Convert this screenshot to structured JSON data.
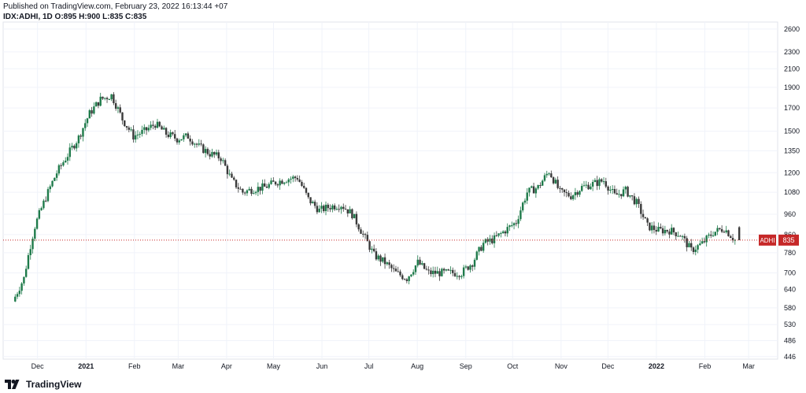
{
  "header": {
    "published": "Published on TradingView.com, February 23, 2022 16:13:44 +07",
    "symbol_info": "IDX:ADHI, 1D O:895 H:900 L:835 C:835"
  },
  "footer": {
    "brand": "TradingView",
    "logo_icon": "tradingview-logo-icon"
  },
  "colors": {
    "up": "#26a69a",
    "down": "#ef5350",
    "up_body": "#1e7a4a",
    "down_body": "#3a3a3a",
    "grid": "#f0f3fa",
    "price_line": "#c62828",
    "axis_text": "#131722"
  },
  "chart_data": {
    "type": "candlestick",
    "symbol": "IDX:ADHI",
    "interval": "1D",
    "last": {
      "open": 895,
      "high": 900,
      "low": 835,
      "close": 835
    },
    "price_label": {
      "name": "ADHI",
      "value": "835"
    },
    "y_scale": "log",
    "ylim": [
      440,
      2700
    ],
    "y_ticks": [
      2600,
      2300,
      2100,
      1900,
      1700,
      1500,
      1350,
      1200,
      1080,
      960,
      860,
      780,
      700,
      640,
      580,
      530,
      486,
      446
    ],
    "x_ticks": [
      "Dec",
      "2021",
      "Feb",
      "Mar",
      "Apr",
      "May",
      "Jun",
      "Jul",
      "Aug",
      "Sep",
      "Oct",
      "Nov",
      "Dec",
      "2022",
      "Feb",
      "Mar"
    ],
    "x_ticks_bold": [
      "2021",
      "2022"
    ],
    "grid": true,
    "series": [
      {
        "date": "2020-11-16",
        "close": 600
      },
      {
        "date": "2020-11-23",
        "close": 680
      },
      {
        "date": "2020-11-30",
        "close": 900
      },
      {
        "date": "2020-12-07",
        "close": 1050
      },
      {
        "date": "2020-12-14",
        "close": 1200
      },
      {
        "date": "2020-12-21",
        "close": 1320
      },
      {
        "date": "2020-12-28",
        "close": 1450
      },
      {
        "date": "2021-01-04",
        "close": 1650
      },
      {
        "date": "2021-01-11",
        "close": 1780
      },
      {
        "date": "2021-01-18",
        "close": 1820
      },
      {
        "date": "2021-01-25",
        "close": 1600
      },
      {
        "date": "2021-02-01",
        "close": 1460
      },
      {
        "date": "2021-02-08",
        "close": 1500
      },
      {
        "date": "2021-02-15",
        "close": 1560
      },
      {
        "date": "2021-02-22",
        "close": 1480
      },
      {
        "date": "2021-03-01",
        "close": 1440
      },
      {
        "date": "2021-03-08",
        "close": 1460
      },
      {
        "date": "2021-03-15",
        "close": 1380
      },
      {
        "date": "2021-03-22",
        "close": 1330
      },
      {
        "date": "2021-03-29",
        "close": 1300
      },
      {
        "date": "2021-04-05",
        "close": 1150
      },
      {
        "date": "2021-04-12",
        "close": 1080
      },
      {
        "date": "2021-04-19",
        "close": 1100
      },
      {
        "date": "2021-04-26",
        "close": 1110
      },
      {
        "date": "2021-05-03",
        "close": 1140
      },
      {
        "date": "2021-05-10",
        "close": 1160
      },
      {
        "date": "2021-05-17",
        "close": 1170
      },
      {
        "date": "2021-05-24",
        "close": 1040
      },
      {
        "date": "2021-05-31",
        "close": 980
      },
      {
        "date": "2021-06-07",
        "close": 1000
      },
      {
        "date": "2021-06-14",
        "close": 1010
      },
      {
        "date": "2021-06-21",
        "close": 960
      },
      {
        "date": "2021-06-28",
        "close": 860
      },
      {
        "date": "2021-07-05",
        "close": 770
      },
      {
        "date": "2021-07-12",
        "close": 740
      },
      {
        "date": "2021-07-19",
        "close": 700
      },
      {
        "date": "2021-07-26",
        "close": 680
      },
      {
        "date": "2021-08-02",
        "close": 740
      },
      {
        "date": "2021-08-09",
        "close": 700
      },
      {
        "date": "2021-08-16",
        "close": 700
      },
      {
        "date": "2021-08-23",
        "close": 700
      },
      {
        "date": "2021-08-30",
        "close": 700
      },
      {
        "date": "2021-09-06",
        "close": 740
      },
      {
        "date": "2021-09-13",
        "close": 820
      },
      {
        "date": "2021-09-20",
        "close": 840
      },
      {
        "date": "2021-09-27",
        "close": 880
      },
      {
        "date": "2021-10-04",
        "close": 920
      },
      {
        "date": "2021-10-11",
        "close": 1080
      },
      {
        "date": "2021-10-18",
        "close": 1110
      },
      {
        "date": "2021-10-25",
        "close": 1210
      },
      {
        "date": "2021-11-01",
        "close": 1080
      },
      {
        "date": "2021-11-08",
        "close": 1060
      },
      {
        "date": "2021-11-15",
        "close": 1110
      },
      {
        "date": "2021-11-22",
        "close": 1130
      },
      {
        "date": "2021-11-29",
        "close": 1150
      },
      {
        "date": "2021-12-06",
        "close": 1060
      },
      {
        "date": "2021-12-13",
        "close": 1090
      },
      {
        "date": "2021-12-20",
        "close": 1020
      },
      {
        "date": "2021-12-27",
        "close": 900
      },
      {
        "date": "2022-01-03",
        "close": 880
      },
      {
        "date": "2022-01-10",
        "close": 880
      },
      {
        "date": "2022-01-17",
        "close": 860
      },
      {
        "date": "2022-01-24",
        "close": 790
      },
      {
        "date": "2022-01-31",
        "close": 820
      },
      {
        "date": "2022-02-07",
        "close": 870
      },
      {
        "date": "2022-02-14",
        "close": 890
      },
      {
        "date": "2022-02-21",
        "close": 835
      }
    ]
  }
}
